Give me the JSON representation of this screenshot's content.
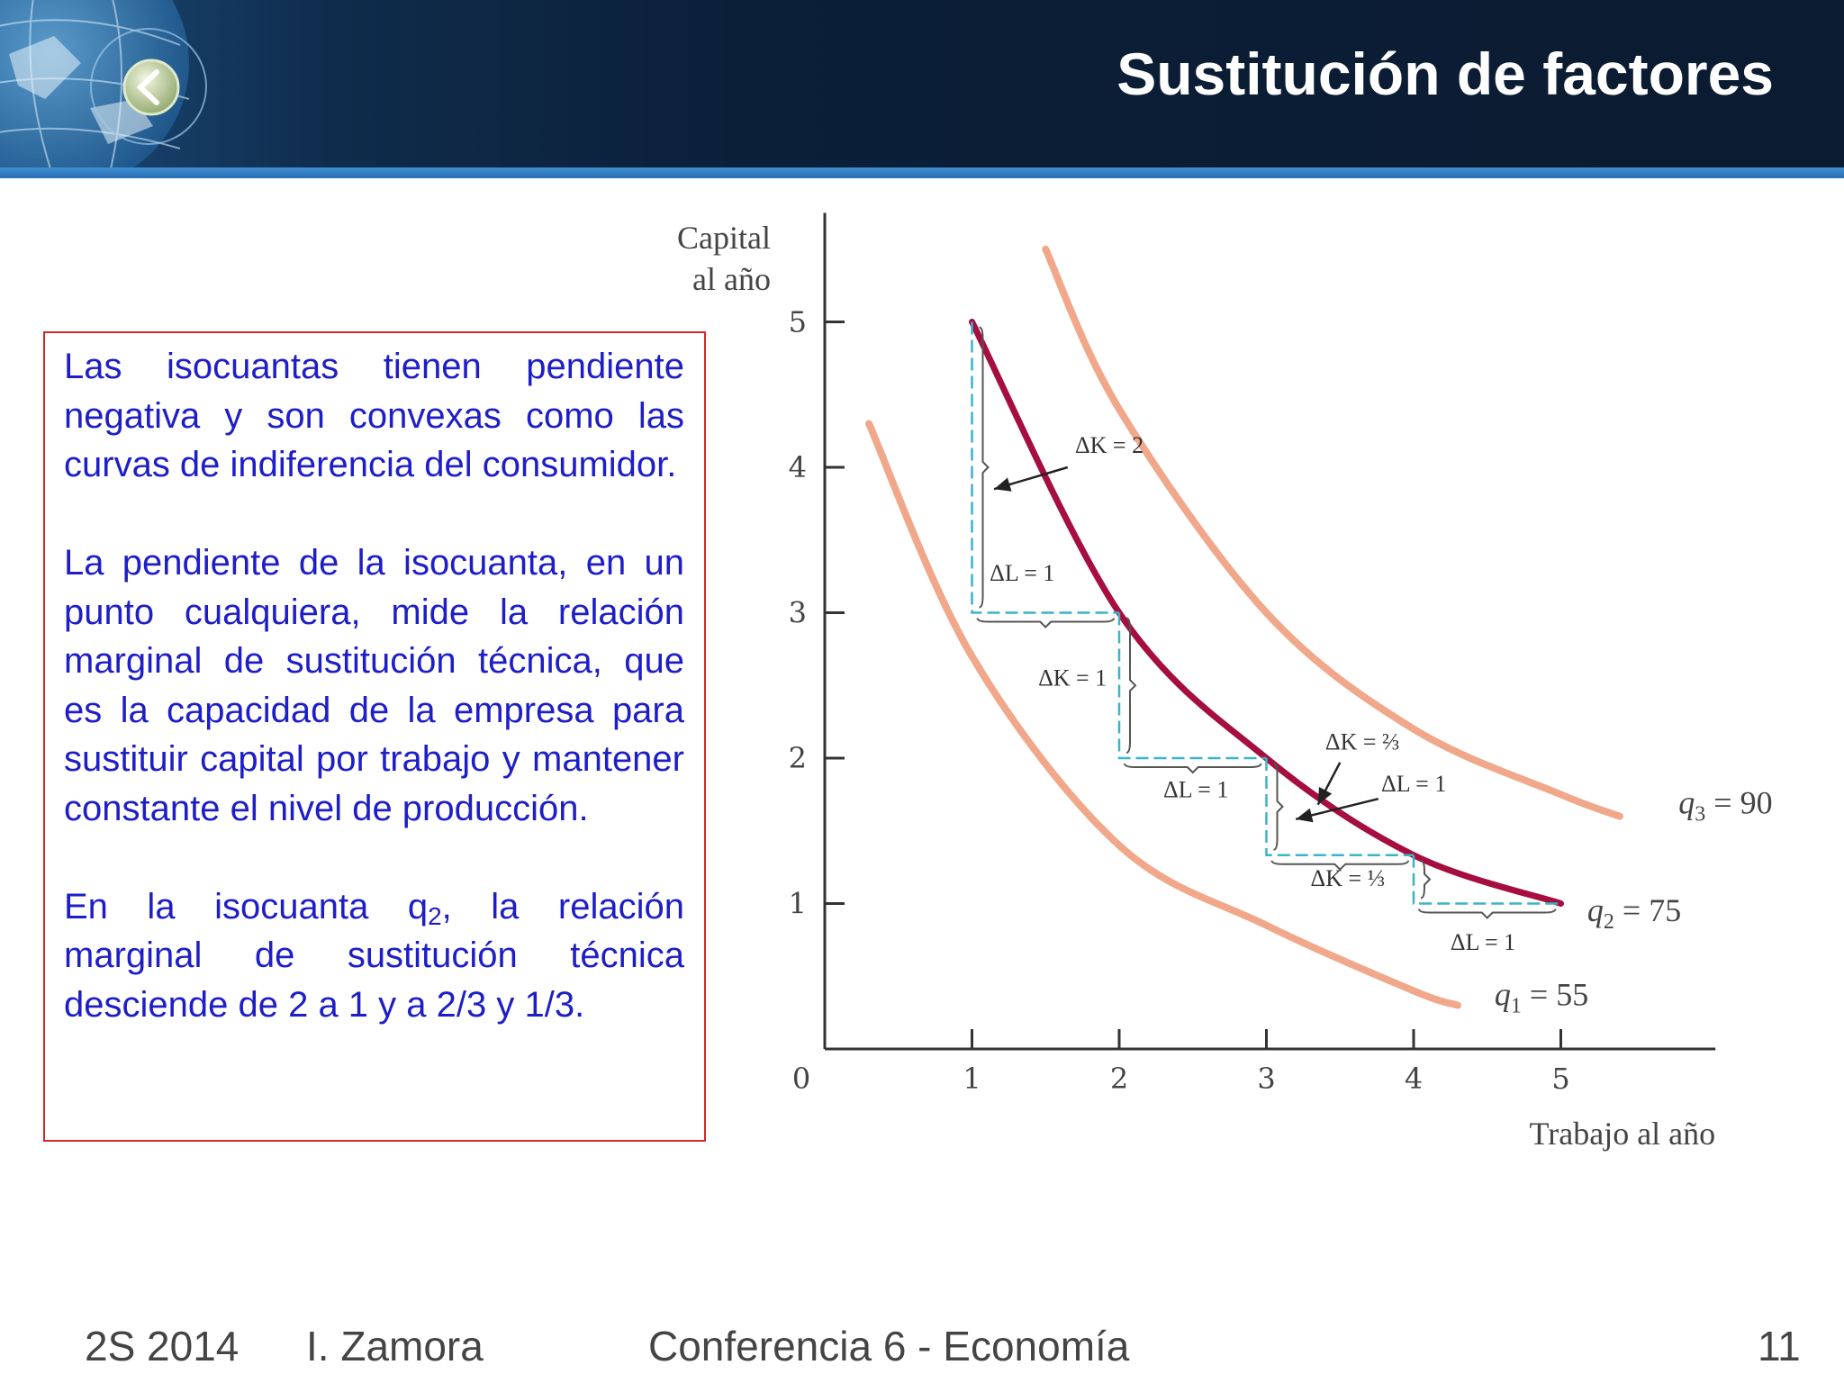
{
  "slide": {
    "title": "Sustitución de factores",
    "text": {
      "p1": "Las isocuantas tienen pendiente negativa y son convexas como las curvas de indiferencia del consumidor.",
      "p2": "La pendiente de la isocuanta, en un punto cualquiera, mide la relación marginal de sustitución técnica, que es la capacidad de la empresa para sustituir capital por trabajo y mantener constante el nivel de producción.",
      "p3_before": "En la isocuanta q",
      "p3_sub": "2",
      "p3_after": ", la relación marginal de sustitución técnica desciende de 2 a 1 y a 2/3 y 1/3."
    }
  },
  "footer": {
    "semester": "2S 2014",
    "author": "I. Zamora",
    "course": "Conferencia 6 - Economía",
    "page": "11"
  },
  "colors": {
    "q2_curve": "#a50e3e",
    "q1_q3_curves": "#f1a88a",
    "steps": "#3bb3c9",
    "text": "#1e1ec8",
    "box_border": "#d9262c"
  },
  "chart_data": {
    "type": "line",
    "xlabel": "Trabajo al año",
    "ylabel": [
      "Capital",
      "al año"
    ],
    "xlim": [
      0,
      6
    ],
    "ylim": [
      0,
      5.75
    ],
    "xticks": [
      "0",
      "1",
      "2",
      "3",
      "4",
      "5"
    ],
    "yticks": [
      "1",
      "2",
      "3",
      "4",
      "5"
    ],
    "grid": false,
    "series": [
      {
        "name": "q1 = 55",
        "label_main": "q",
        "label_sub": "1",
        "label_val": " = 55",
        "x": [
          0.3,
          1.0,
          2.0,
          3.0,
          4.0,
          4.3
        ],
        "y": [
          4.3,
          2.7,
          1.4,
          0.85,
          0.4,
          0.3
        ]
      },
      {
        "name": "q2 = 75",
        "label_main": "q",
        "label_sub": "2",
        "label_val": " = 75",
        "x": [
          1,
          2,
          3,
          4,
          5
        ],
        "y": [
          5,
          3,
          2,
          1.333,
          1
        ]
      },
      {
        "name": "q3 = 90",
        "label_main": "q",
        "label_sub": "3",
        "label_val": " = 90",
        "x": [
          1.5,
          2.0,
          3.0,
          4.0,
          5.0,
          5.4
        ],
        "y": [
          5.5,
          4.4,
          3.0,
          2.2,
          1.75,
          1.6
        ]
      }
    ],
    "steps": [
      {
        "from": [
          1,
          5
        ],
        "to": [
          2,
          3
        ]
      },
      {
        "from": [
          2,
          3
        ],
        "to": [
          3,
          2
        ]
      },
      {
        "from": [
          3,
          2
        ],
        "to": [
          4,
          1.333
        ]
      },
      {
        "from": [
          4,
          1.333
        ],
        "to": [
          5,
          1
        ]
      }
    ],
    "annotations": [
      {
        "text": "ΔK = 2",
        "x": 1.7,
        "y": 4.1
      },
      {
        "text": "ΔL = 1",
        "x": 1.12,
        "y": 3.22
      },
      {
        "text": "ΔK = 1",
        "x": 1.45,
        "y": 2.5
      },
      {
        "text": "ΔL = 1",
        "x": 2.3,
        "y": 1.73
      },
      {
        "text": "ΔK = ⅔",
        "x": 3.4,
        "y": 2.06
      },
      {
        "text": "ΔL = 1",
        "x": 3.78,
        "y": 1.77
      },
      {
        "text": "ΔK = ⅓",
        "x": 3.3,
        "y": 1.12
      },
      {
        "text": "ΔL = 1",
        "x": 4.25,
        "y": 0.68
      }
    ]
  }
}
